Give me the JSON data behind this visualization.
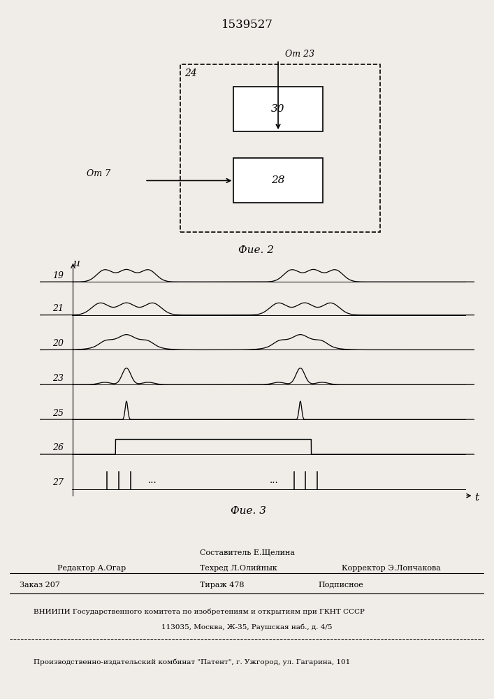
{
  "patent_number": "1539527",
  "fig2": {
    "title": "Фие. 2",
    "outer_box_label": "24",
    "box30_label": "30",
    "box28_label": "28",
    "from23_label": "От 23",
    "from7_label": "От 7"
  },
  "fig3": {
    "title": "Фие. 3",
    "t_label": "t",
    "u_label": "u",
    "channels": [
      "19",
      "21",
      "20",
      "23",
      "25",
      "26",
      "27"
    ]
  },
  "footer": {
    "line1_center": "Составитель Е.Щелина",
    "line2_left": "Редактор А.Огар",
    "line2_center": "Техред Л.Олийнык",
    "line2_right": "Корректор Э.Лончакова",
    "line3_left": "Заказ 207",
    "line3_center": "Тираж 478",
    "line3_right": "Подписное",
    "line4": "ВНИИПИ Государственного комитета по изобретениям и открытиям при ГКНТ СССР",
    "line5": "113035, Москва, Ж-35, Раушская наб., д. 4/5",
    "line6": "Производственно-издательский комбинат \"Патент\", г. Ужгород, ул. Гагарина, 101"
  },
  "bg_color": "#f0ede8"
}
